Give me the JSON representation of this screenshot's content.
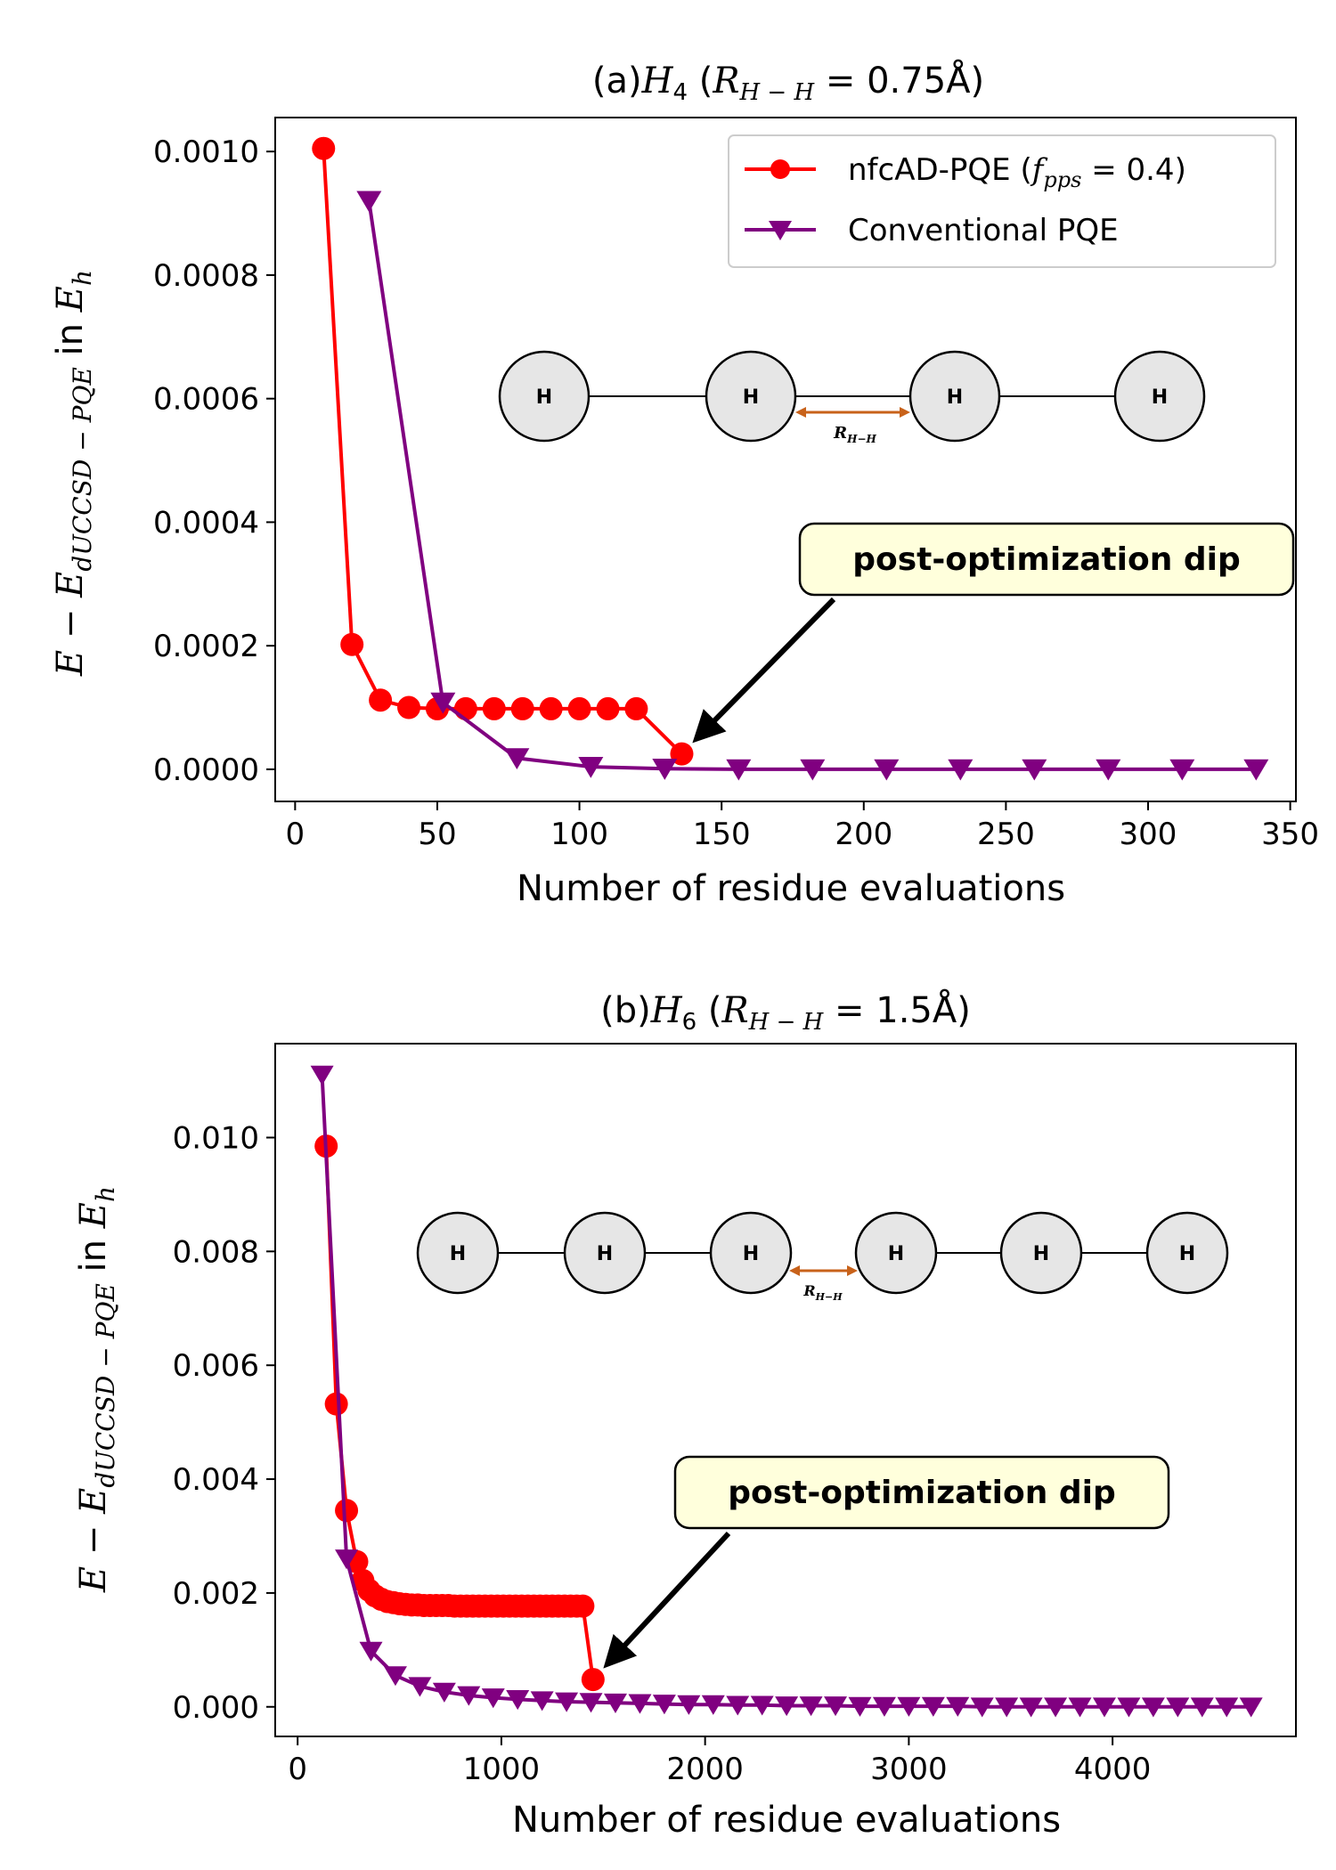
{
  "colors": {
    "nfcad": "#ff0000",
    "conventional": "#800080",
    "bond_arrow": "#c8621a",
    "annotation_fill": "#ffffdc",
    "atom_fill": "#e6e6e6"
  },
  "legend": {
    "nfcad_label_prefix": "nfcAD-PQE (",
    "nfcad_label_f": "f",
    "nfcad_label_sub": "pps",
    "nfcad_label_suffix": " = 0.4)",
    "conventional_label": "Conventional PQE"
  },
  "chart_data": [
    {
      "type": "line",
      "title_prefix": "(a)",
      "title_species": "H",
      "title_species_sub": "4",
      "title_r": "R",
      "title_r_sub": "H − H",
      "title_value": " = 0.75Å",
      "xlabel": "Number of residue evaluations",
      "ylabel_main": "E − E",
      "ylabel_sub": "dUCCSD − PQE",
      "ylabel_in": " in ",
      "ylabel_unit": "E",
      "ylabel_unit_sub": "h",
      "xlim": [
        -7,
        352
      ],
      "ylim": [
        -5.2e-05,
        0.001055
      ],
      "xticks": [
        0,
        50,
        100,
        150,
        200,
        250,
        300,
        350
      ],
      "xtick_labels": [
        "0",
        "50",
        "100",
        "150",
        "200",
        "250",
        "300",
        "350"
      ],
      "yticks": [
        0.0,
        0.0002,
        0.0004,
        0.0006,
        0.0008,
        0.001
      ],
      "ytick_labels": [
        "0.0000",
        "0.0002",
        "0.0004",
        "0.0006",
        "0.0008",
        "0.0010"
      ],
      "legend_position": "top-right",
      "series": [
        {
          "name": "nfcAD-PQE (f_pps = 0.4)",
          "marker": "circle",
          "x": [
            10,
            20,
            30,
            40,
            50,
            60,
            70,
            80,
            90,
            100,
            110,
            120,
            136
          ],
          "y": [
            0.001005,
            0.000202,
            0.000112,
            0.0001,
            9.8e-05,
            9.8e-05,
            9.8e-05,
            9.8e-05,
            9.8e-05,
            9.8e-05,
            9.8e-05,
            9.8e-05,
            2.5e-05
          ]
        },
        {
          "name": "Conventional PQE",
          "marker": "triangle-down",
          "x": [
            26,
            52,
            78,
            104,
            130,
            156,
            182,
            208,
            234,
            260,
            286,
            312,
            338
          ],
          "y": [
            0.00092,
            0.000108,
            1.8e-05,
            4e-06,
            1e-06,
            0.0,
            0.0,
            0.0,
            0.0,
            0.0,
            0.0,
            0.0,
            0.0
          ]
        }
      ],
      "annotation": {
        "text": "post-optimization dip",
        "target_x": 136,
        "target_y": 2.5e-05
      },
      "molecule": {
        "atoms": [
          "H",
          "H",
          "H",
          "H"
        ],
        "bond_label": "R",
        "bond_label_sub": "H−H"
      }
    },
    {
      "type": "line",
      "title_prefix": "(b)",
      "title_species": "H",
      "title_species_sub": "6",
      "title_r": "R",
      "title_r_sub": "H − H",
      "title_value": " = 1.5Å",
      "xlabel": "Number of residue evaluations",
      "ylabel_main": "E − E",
      "ylabel_sub": "dUCCSD − PQE",
      "ylabel_in": " in ",
      "ylabel_unit": "E",
      "ylabel_unit_sub": "h",
      "xlim": [
        -110,
        4900
      ],
      "ylim": [
        -0.00052,
        0.01165
      ],
      "xticks": [
        0,
        1000,
        2000,
        3000,
        4000
      ],
      "xtick_labels": [
        "0",
        "1000",
        "2000",
        "3000",
        "4000"
      ],
      "yticks": [
        0.0,
        0.002,
        0.004,
        0.006,
        0.008,
        0.01
      ],
      "ytick_labels": [
        "0.000",
        "0.002",
        "0.004",
        "0.006",
        "0.008",
        "0.010"
      ],
      "legend_position": "none",
      "series": [
        {
          "name": "nfcAD-PQE (f_pps = 0.4)",
          "marker": "circle",
          "x": [
            140,
            190,
            240,
            290,
            320,
            350,
            380,
            410,
            440,
            470,
            500,
            530,
            560,
            590,
            620,
            650,
            680,
            710,
            740,
            770,
            800,
            830,
            860,
            890,
            920,
            950,
            980,
            1010,
            1040,
            1070,
            1100,
            1130,
            1160,
            1190,
            1220,
            1250,
            1280,
            1310,
            1340,
            1370,
            1400,
            1450
          ],
          "y": [
            0.00985,
            0.00532,
            0.00345,
            0.00255,
            0.00222,
            0.00205,
            0.00195,
            0.00189,
            0.00185,
            0.00183,
            0.00181,
            0.0018,
            0.00179,
            0.00179,
            0.00178,
            0.00178,
            0.00178,
            0.00178,
            0.00178,
            0.00177,
            0.00177,
            0.00177,
            0.00177,
            0.00177,
            0.00177,
            0.00177,
            0.00177,
            0.00177,
            0.00177,
            0.00177,
            0.00177,
            0.00177,
            0.00177,
            0.00177,
            0.00177,
            0.00177,
            0.00177,
            0.00177,
            0.00177,
            0.00177,
            0.00177,
            0.00048
          ]
        },
        {
          "name": "Conventional PQE",
          "marker": "triangle-down",
          "x": [
            120,
            240,
            360,
            480,
            600,
            720,
            840,
            960,
            1080,
            1200,
            1320,
            1440,
            1560,
            1680,
            1800,
            1920,
            2040,
            2160,
            2280,
            2400,
            2520,
            2640,
            2760,
            2880,
            3000,
            3120,
            3240,
            3360,
            3480,
            3600,
            3720,
            3840,
            3960,
            4080,
            4200,
            4320,
            4440,
            4560,
            4680
          ],
          "y": [
            0.0111,
            0.0026,
            0.00098,
            0.00055,
            0.00036,
            0.00026,
            0.0002,
            0.00016,
            0.00013,
            0.00011,
            9e-05,
            8e-05,
            7e-05,
            6e-05,
            5e-05,
            4e-05,
            4e-05,
            3e-05,
            3e-05,
            2e-05,
            2e-05,
            2e-05,
            1e-05,
            1e-05,
            1e-05,
            1e-05,
            1e-05,
            0.0,
            0.0,
            0.0,
            0.0,
            0.0,
            0.0,
            0.0,
            0.0,
            0.0,
            0.0,
            0.0,
            0.0
          ]
        }
      ],
      "annotation": {
        "text": "post-optimization dip",
        "target_x": 1450,
        "target_y": 0.00048
      },
      "molecule": {
        "atoms": [
          "H",
          "H",
          "H",
          "H",
          "H",
          "H"
        ],
        "bond_label": "R",
        "bond_label_sub": "H−H"
      }
    }
  ]
}
